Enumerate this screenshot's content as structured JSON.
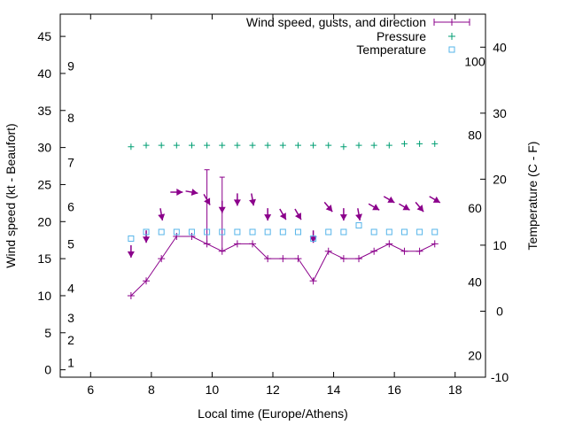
{
  "chart_data": {
    "type": "line",
    "title": "",
    "xlabel": "Local time (Europe/Athens)",
    "ylabel": "Wind speed (kt - Beaufort)",
    "y2label": "Temperature (C - F)",
    "xlim": [
      5,
      19
    ],
    "ylim": [
      -1,
      48
    ],
    "y2lim": [
      -10,
      45
    ],
    "x_ticks": [
      6,
      8,
      10,
      12,
      14,
      16,
      18
    ],
    "y_ticks": [
      0,
      5,
      10,
      15,
      20,
      25,
      30,
      35,
      40,
      45
    ],
    "y2_ticks": [
      -10,
      0,
      10,
      20,
      30,
      40
    ],
    "beaufort_labels": [
      {
        "label": "1",
        "kt": 1
      },
      {
        "label": "2",
        "kt": 4
      },
      {
        "label": "3",
        "kt": 7
      },
      {
        "label": "4",
        "kt": 11
      },
      {
        "label": "5",
        "kt": 17
      },
      {
        "label": "6",
        "kt": 22
      },
      {
        "label": "7",
        "kt": 28
      },
      {
        "label": "8",
        "kt": 34
      },
      {
        "label": "9",
        "kt": 41
      }
    ],
    "fahrenheit_labels": [
      {
        "label": "20",
        "c": -6.7
      },
      {
        "label": "40",
        "c": 4.4
      },
      {
        "label": "60",
        "c": 15.6
      },
      {
        "label": "80",
        "c": 26.7
      },
      {
        "label": "100",
        "c": 37.8
      }
    ],
    "legend_position": "top-right",
    "series": [
      {
        "name": "Wind speed, gusts, and direction",
        "color": "#8b008b",
        "x": [
          7.33,
          7.83,
          8.33,
          8.83,
          9.33,
          9.83,
          10.33,
          10.83,
          11.33,
          11.83,
          12.33,
          12.83,
          13.33,
          13.83,
          14.33,
          14.83,
          15.33,
          15.83,
          16.33,
          16.83,
          17.33
        ],
        "values": [
          10,
          12,
          15,
          18,
          18,
          17,
          16,
          17,
          17,
          15,
          15,
          15,
          12,
          16,
          15,
          15,
          16,
          17,
          16,
          16,
          17
        ],
        "gusts": [
          null,
          null,
          null,
          null,
          null,
          27,
          26,
          null,
          null,
          null,
          null,
          null,
          null,
          null,
          null,
          null,
          null,
          null,
          null,
          null,
          null
        ],
        "direction_deg": [
          0,
          0,
          350,
          270,
          280,
          330,
          0,
          0,
          350,
          0,
          330,
          330,
          0,
          320,
          0,
          350,
          300,
          300,
          300,
          320,
          300
        ]
      },
      {
        "name": "Pressure",
        "color": "#009e73",
        "axis": "y1",
        "x": [
          7.33,
          7.83,
          8.33,
          8.83,
          9.33,
          9.83,
          10.33,
          10.83,
          11.33,
          11.83,
          12.33,
          12.83,
          13.33,
          13.83,
          14.33,
          14.83,
          15.33,
          15.83,
          16.33,
          16.83,
          17.33
        ],
        "values": [
          30.1,
          30.3,
          30.3,
          30.3,
          30.3,
          30.3,
          30.3,
          30.3,
          30.3,
          30.3,
          30.3,
          30.3,
          30.3,
          30.3,
          30.1,
          30.3,
          30.3,
          30.3,
          30.5,
          30.5,
          30.5
        ]
      },
      {
        "name": "Temperature",
        "color": "#56b4e9",
        "axis": "y2",
        "x": [
          7.33,
          7.83,
          8.33,
          8.83,
          9.33,
          9.83,
          10.33,
          10.83,
          11.33,
          11.83,
          12.33,
          12.83,
          13.33,
          13.83,
          14.33,
          14.83,
          15.33,
          15.83,
          16.33,
          16.83,
          17.33
        ],
        "values": [
          11,
          12,
          12,
          12,
          12,
          12,
          12,
          12,
          12,
          12,
          12,
          12,
          11,
          12,
          12,
          13,
          12,
          12,
          12,
          12,
          12
        ]
      }
    ]
  }
}
